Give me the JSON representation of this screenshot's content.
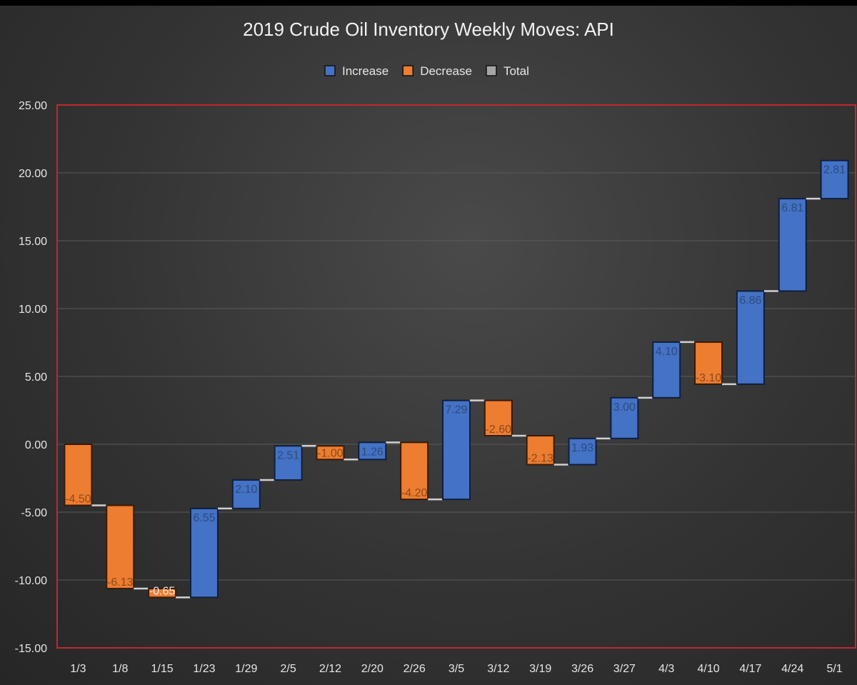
{
  "chart_data": {
    "type": "waterfall",
    "title": "2019 Crude Oil Inventory Weekly Moves: API",
    "legend": [
      {
        "name": "Increase",
        "color": "#4472c4"
      },
      {
        "name": "Decrease",
        "color": "#ed7d31"
      },
      {
        "name": "Total",
        "color": "#a5a5a5"
      }
    ],
    "legend_position": "top",
    "categories": [
      "1/3",
      "1/8",
      "1/15",
      "1/23",
      "1/29",
      "2/5",
      "2/12",
      "2/20",
      "2/26",
      "3/5",
      "3/12",
      "3/19",
      "3/26",
      "3/27",
      "4/3",
      "4/10",
      "4/17",
      "4/24",
      "5/1"
    ],
    "values": [
      -4.5,
      -6.13,
      -0.65,
      6.55,
      2.1,
      2.51,
      -1.0,
      1.26,
      -4.2,
      7.29,
      -2.6,
      -2.13,
      1.93,
      3.0,
      4.1,
      -3.1,
      6.86,
      6.81,
      2.81
    ],
    "labels": [
      "-4.50",
      "-6.13",
      "-0.65",
      "6.55",
      "2.10",
      "2.51",
      "-1.00",
      "1.26",
      "-4.20",
      "7.29",
      "-2.60",
      "-2.13",
      "1.93",
      "3.00",
      "4.10",
      "-3.10",
      "6.86",
      "6.81",
      "2.81"
    ],
    "yticks": [
      "25.00",
      "20.00",
      "15.00",
      "10.00",
      "5.00",
      "0.00",
      "-5.00",
      "-10.00",
      "-15.00"
    ],
    "ylim": [
      -15,
      25
    ],
    "grid": true
  }
}
